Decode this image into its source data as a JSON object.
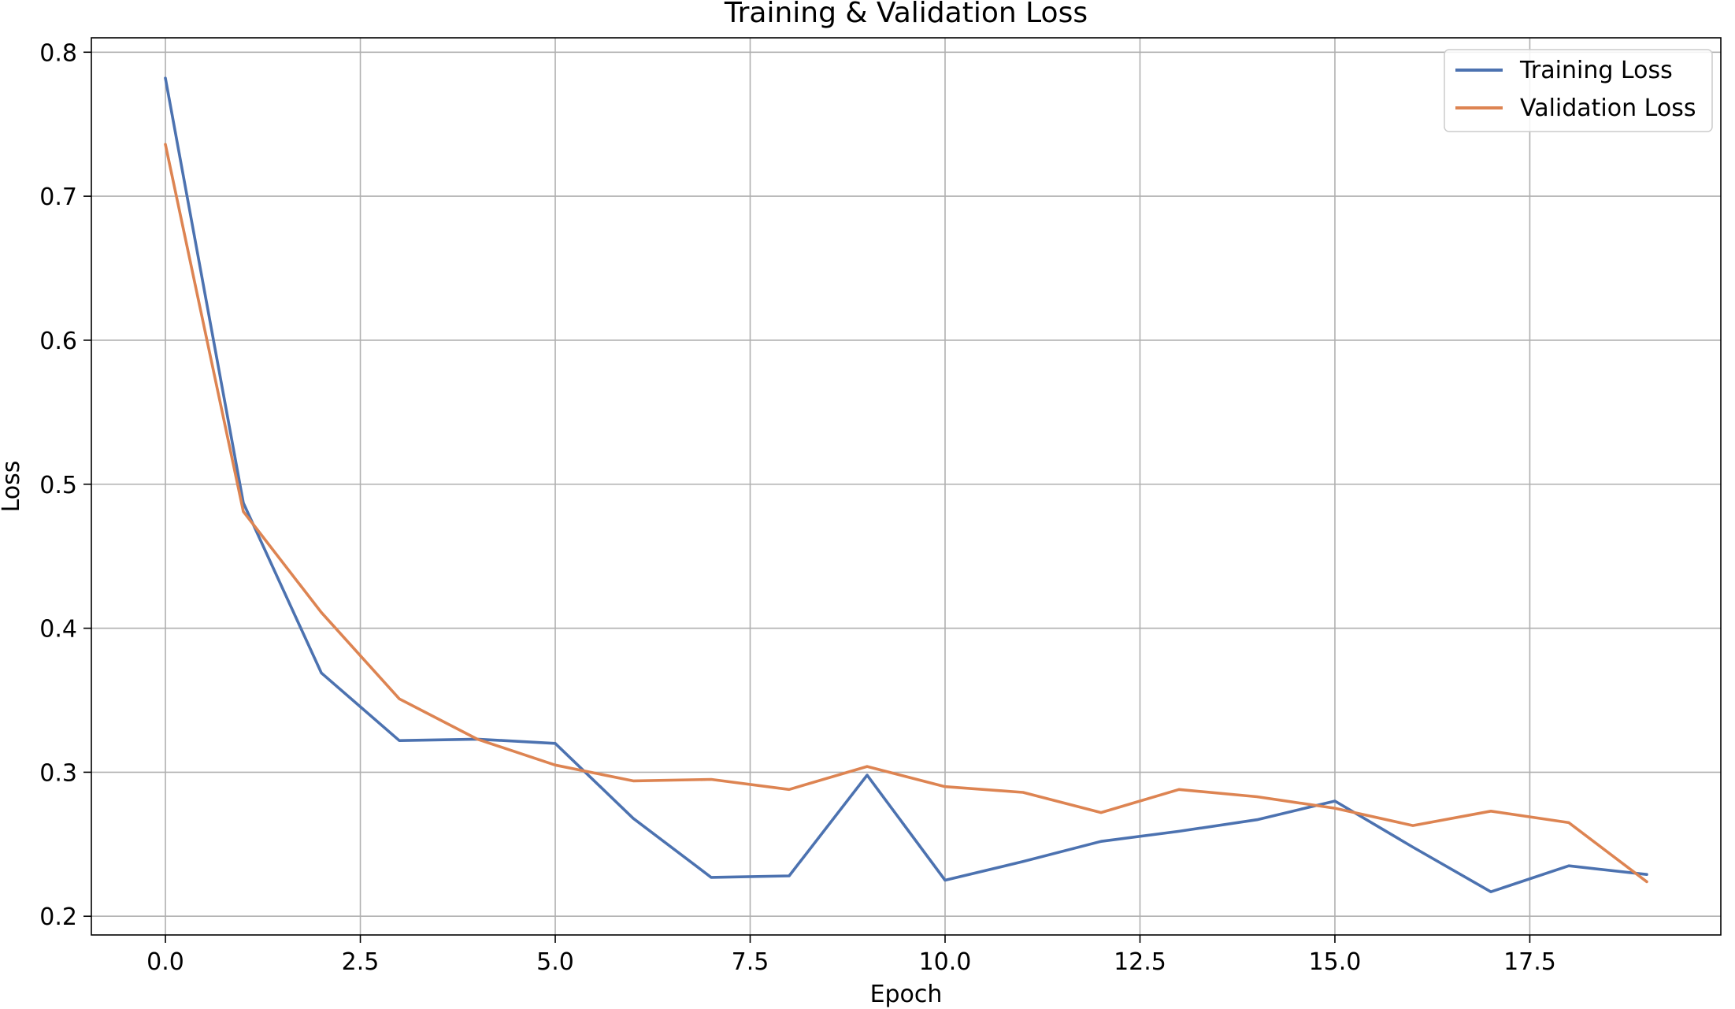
{
  "chart_data": {
    "type": "line",
    "title": "Training & Validation Loss",
    "xlabel": "Epoch",
    "ylabel": "Loss",
    "xlim": [
      -0.95,
      19.95
    ],
    "ylim": [
      0.187,
      0.81
    ],
    "xticks": [
      "0.0",
      "2.5",
      "5.0",
      "7.5",
      "10.0",
      "12.5",
      "15.0",
      "17.5"
    ],
    "xtick_values": [
      0,
      2.5,
      5,
      7.5,
      10,
      12.5,
      15,
      17.5
    ],
    "yticks": [
      "0.2",
      "0.3",
      "0.4",
      "0.5",
      "0.6",
      "0.7",
      "0.8"
    ],
    "ytick_values": [
      0.2,
      0.3,
      0.4,
      0.5,
      0.6,
      0.7,
      0.8
    ],
    "grid": true,
    "legend_position": "top-right",
    "x": [
      0,
      1,
      2,
      3,
      4,
      5,
      6,
      7,
      8,
      9,
      10,
      11,
      12,
      13,
      14,
      15,
      16,
      17,
      18,
      19
    ],
    "series": [
      {
        "name": "Training Loss",
        "color": "#4c72b0",
        "values": [
          0.782,
          0.487,
          0.369,
          0.322,
          0.323,
          0.32,
          0.268,
          0.227,
          0.228,
          0.298,
          0.225,
          0.238,
          0.252,
          0.259,
          0.267,
          0.28,
          0.248,
          0.217,
          0.235,
          0.229
        ]
      },
      {
        "name": "Validation Loss",
        "color": "#dd8452",
        "values": [
          0.736,
          0.481,
          0.411,
          0.351,
          0.323,
          0.305,
          0.294,
          0.295,
          0.288,
          0.304,
          0.29,
          0.286,
          0.272,
          0.288,
          0.283,
          0.275,
          0.263,
          0.273,
          0.265,
          0.224
        ]
      }
    ]
  }
}
